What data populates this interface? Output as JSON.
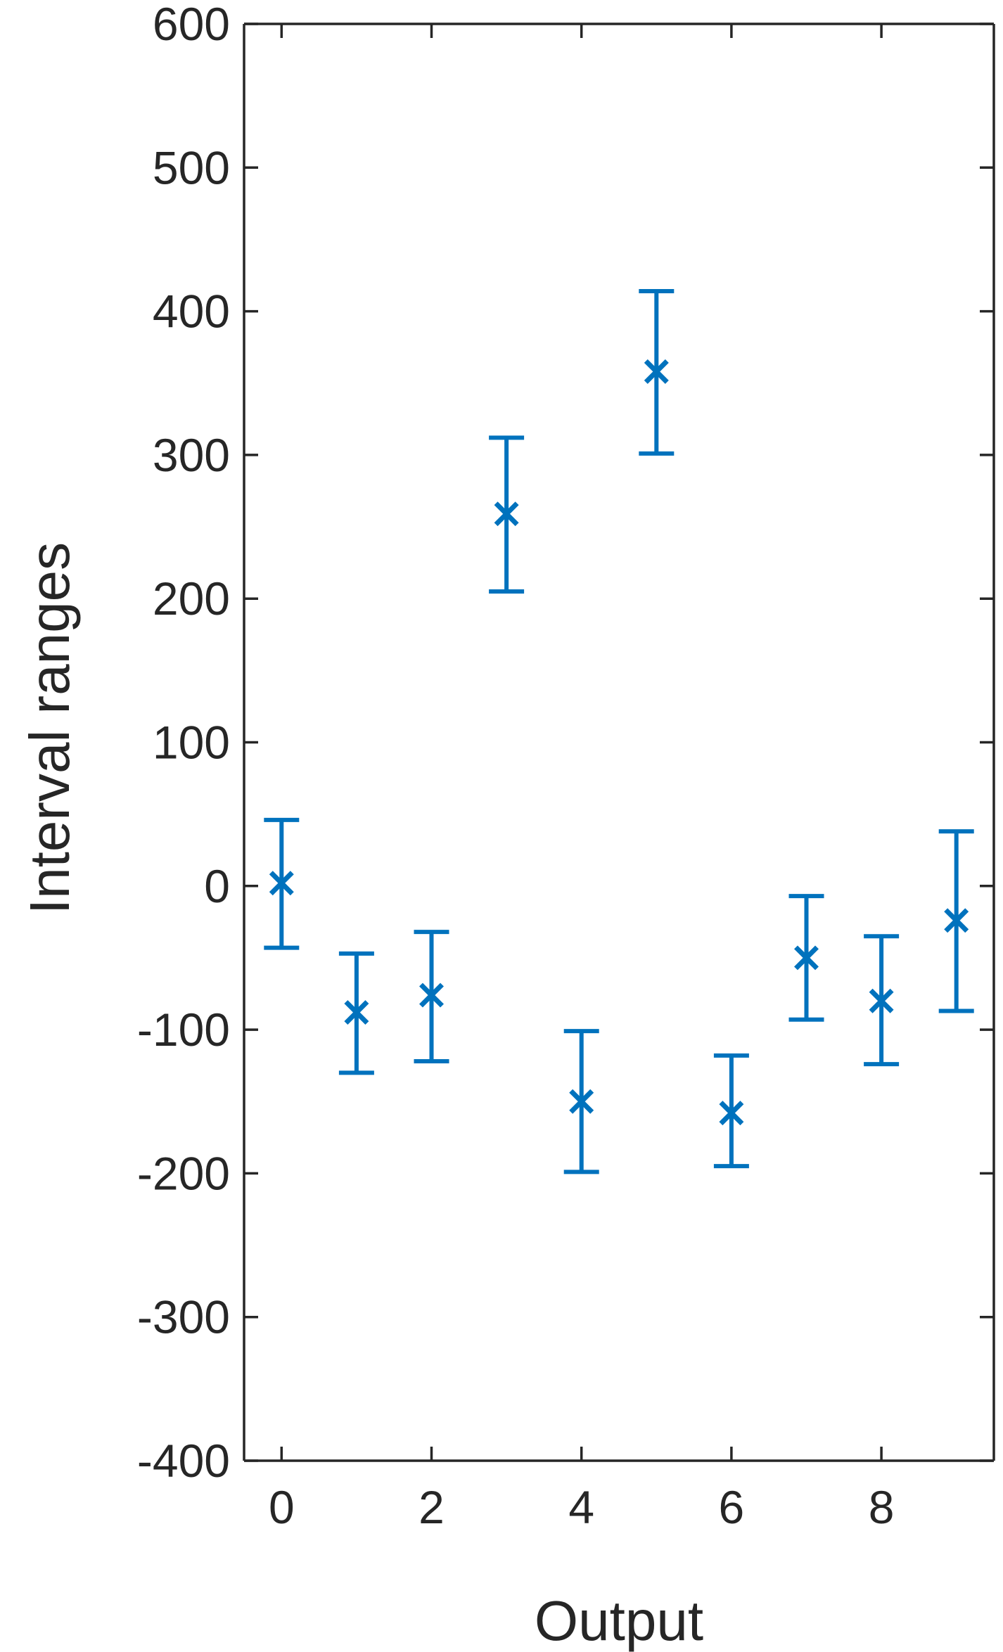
{
  "chart_data": {
    "type": "scatter",
    "xlabel": "Output",
    "ylabel": "Interval ranges",
    "xlim": [
      -0.5,
      9.5
    ],
    "ylim": [
      -400,
      600
    ],
    "xticks": [
      0,
      2,
      4,
      6,
      8
    ],
    "yticks": [
      -400,
      -300,
      -200,
      -100,
      0,
      100,
      200,
      300,
      400,
      500,
      600
    ],
    "grid": false,
    "marker": "x",
    "color": "#0072bd",
    "points": [
      {
        "x": 0,
        "y": 2,
        "lower": -43,
        "upper": 46
      },
      {
        "x": 1,
        "y": -88,
        "lower": -130,
        "upper": -47
      },
      {
        "x": 2,
        "y": -76,
        "lower": -122,
        "upper": -32
      },
      {
        "x": 3,
        "y": 259,
        "lower": 205,
        "upper": 312
      },
      {
        "x": 4,
        "y": -150,
        "lower": -199,
        "upper": -101
      },
      {
        "x": 5,
        "y": 358,
        "lower": 301,
        "upper": 414
      },
      {
        "x": 6,
        "y": -158,
        "lower": -195,
        "upper": -118
      },
      {
        "x": 7,
        "y": -50,
        "lower": -93,
        "upper": -7
      },
      {
        "x": 8,
        "y": -80,
        "lower": -124,
        "upper": -35
      },
      {
        "x": 9,
        "y": -24,
        "lower": -87,
        "upper": 38
      }
    ]
  }
}
